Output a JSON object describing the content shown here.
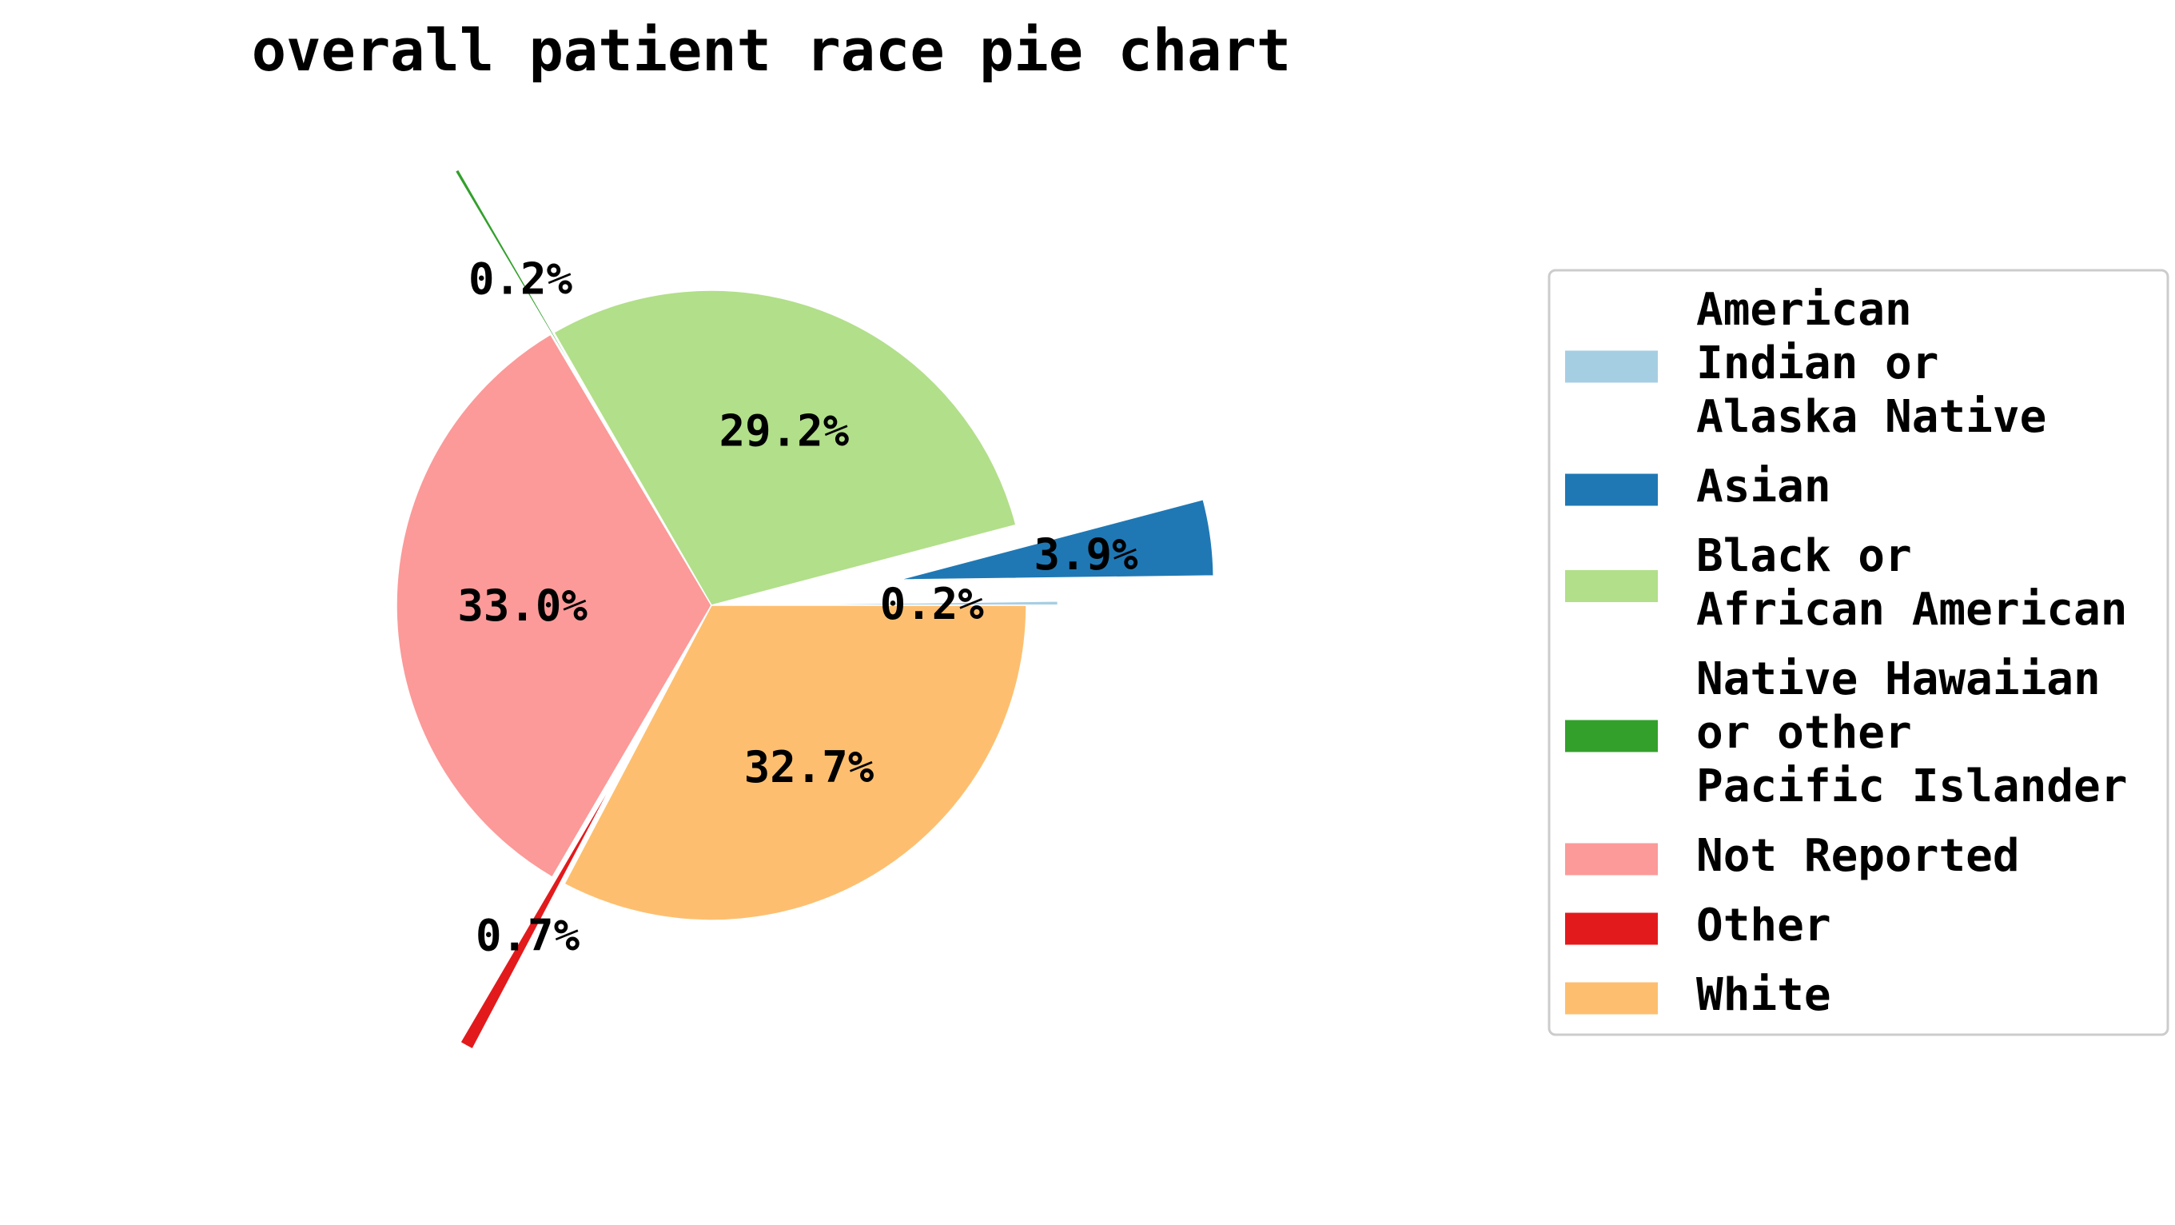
{
  "chart_data": {
    "type": "pie",
    "title": "overall patient race pie chart",
    "slices": [
      {
        "label": "American Indian or Alaska Native",
        "legend_lines": [
          "American",
          "Indian or",
          "Alaska Native"
        ],
        "percent_label": "0.2%",
        "value": 0.2,
        "color": "#a6cee3",
        "exploded": true
      },
      {
        "label": "Asian",
        "legend_lines": [
          "Asian"
        ],
        "percent_label": "3.9%",
        "value": 3.9,
        "color": "#1f78b4",
        "exploded": true
      },
      {
        "label": "Black or African American",
        "legend_lines": [
          "Black or",
          "African American"
        ],
        "percent_label": "29.2%",
        "value": 29.2,
        "color": "#b2df8a",
        "exploded": false
      },
      {
        "label": "Native Hawaiian or other Pacific Islander",
        "legend_lines": [
          "Native Hawaiian",
          "or other",
          "Pacific Islander"
        ],
        "percent_label": "0.2%",
        "value": 0.2,
        "color": "#33a02c",
        "exploded": true
      },
      {
        "label": "Not Reported",
        "legend_lines": [
          "Not Reported"
        ],
        "percent_label": "33.0%",
        "value": 33.0,
        "color": "#fb9a99",
        "exploded": false
      },
      {
        "label": "Other",
        "legend_lines": [
          "Other"
        ],
        "percent_label": "0.7%",
        "value": 0.7,
        "color": "#e31a1c",
        "exploded": true
      },
      {
        "label": "White",
        "legend_lines": [
          "White"
        ],
        "percent_label": "32.7%",
        "value": 32.7,
        "color": "#fdbf6f",
        "exploded": false
      }
    ],
    "start_angle_deg": 0,
    "direction": "counterclockwise",
    "legend_position": "right"
  }
}
